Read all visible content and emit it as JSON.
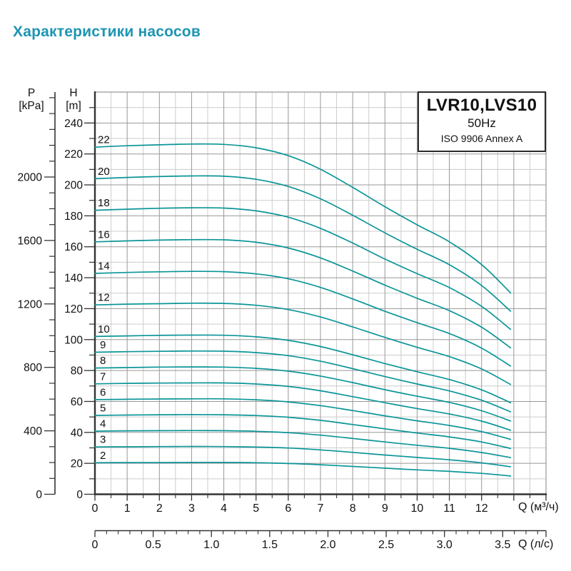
{
  "page": {
    "title": "Характеристики насосов"
  },
  "chart_data": {
    "type": "line",
    "title": "Характеристики насосов",
    "legend": {
      "model": "LVR10,LVS10",
      "frequency": "50Hz",
      "standard": "ISO 9906 Annex A"
    },
    "p_axis": {
      "name": "P",
      "unit": "[kPa]",
      "tick_labels": [
        0,
        400,
        800,
        1200,
        1600,
        2000
      ],
      "minor_step": 100,
      "minor_max": 2500
    },
    "h_axis": {
      "name": "H",
      "unit": "[m]",
      "tick_labels": [
        0,
        20,
        40,
        60,
        80,
        100,
        120,
        140,
        160,
        180,
        200,
        220,
        240
      ],
      "minor_step": 10,
      "minor_max": 250,
      "max": 260
    },
    "q_axis": {
      "unit_label": "Q (м³/ч)",
      "tick_labels": [
        0,
        1,
        2,
        3,
        4,
        5,
        6,
        7,
        8,
        9,
        10,
        11,
        12
      ],
      "major_max": 14,
      "minor_step": 0.5,
      "max": 14
    },
    "ls_axis": {
      "unit_label": "Q (л/с)",
      "tick_labels": [
        "0",
        "0.5",
        "1.0",
        "1.5",
        "2.0",
        "2.5",
        "3.0",
        "3.5"
      ],
      "tick_values": [
        0,
        0.5,
        1.0,
        1.5,
        2.0,
        2.5,
        3.0,
        3.5
      ],
      "minor_step": 0.1,
      "minor_max": 3.8
    },
    "x": [
      0,
      1,
      2,
      3,
      4,
      5,
      6,
      7,
      8,
      9,
      10,
      11,
      12,
      12.9
    ],
    "series": [
      {
        "name": "22",
        "stages": 22,
        "values": [
          224.4,
          225.3,
          225.9,
          226.4,
          226.2,
          224.0,
          218.9,
          210.1,
          198.4,
          185.9,
          174.2,
          163.2,
          148.5,
          130.2
        ]
      },
      {
        "name": "20",
        "stages": 20,
        "values": [
          204.0,
          204.8,
          205.4,
          205.8,
          205.6,
          203.6,
          199.0,
          191.0,
          180.4,
          169.0,
          158.4,
          148.4,
          135.0,
          118.4
        ]
      },
      {
        "name": "18",
        "stages": 18,
        "values": [
          183.6,
          184.3,
          184.9,
          185.2,
          185.0,
          183.2,
          179.1,
          171.9,
          162.4,
          152.1,
          142.6,
          133.6,
          121.5,
          106.6
        ]
      },
      {
        "name": "16",
        "stages": 16,
        "values": [
          163.2,
          163.8,
          164.3,
          164.6,
          164.5,
          162.9,
          159.2,
          152.8,
          144.3,
          135.2,
          126.7,
          118.7,
          108.0,
          94.7
        ]
      },
      {
        "name": "14",
        "stages": 14,
        "values": [
          142.8,
          143.4,
          143.8,
          144.1,
          143.9,
          142.5,
          139.3,
          133.7,
          126.3,
          118.3,
          110.9,
          103.9,
          94.5,
          82.9
        ]
      },
      {
        "name": "12",
        "stages": 12,
        "values": [
          122.4,
          122.9,
          123.2,
          123.5,
          123.4,
          122.2,
          119.4,
          114.6,
          108.2,
          101.4,
          95.0,
          89.0,
          81.0,
          71.0
        ]
      },
      {
        "name": "10",
        "stages": 10,
        "values": [
          102.0,
          102.4,
          102.7,
          102.9,
          102.8,
          101.8,
          99.5,
          95.5,
          90.2,
          84.5,
          79.2,
          74.2,
          67.5,
          59.2
        ]
      },
      {
        "name": "9",
        "stages": 9,
        "values": [
          91.8,
          92.2,
          92.4,
          92.6,
          92.5,
          91.6,
          89.6,
          86.0,
          81.2,
          76.1,
          71.3,
          66.8,
          60.8,
          53.3
        ]
      },
      {
        "name": "8",
        "stages": 8,
        "values": [
          81.6,
          81.9,
          82.2,
          82.3,
          82.2,
          81.4,
          79.6,
          76.4,
          72.2,
          67.6,
          63.4,
          59.4,
          54.0,
          47.4
        ]
      },
      {
        "name": "7",
        "stages": 7,
        "values": [
          71.4,
          71.7,
          71.9,
          72.0,
          72.0,
          71.3,
          69.7,
          66.9,
          63.1,
          59.2,
          55.4,
          51.9,
          47.3,
          41.4
        ]
      },
      {
        "name": "6",
        "stages": 6,
        "values": [
          61.2,
          61.4,
          61.6,
          61.7,
          61.7,
          61.1,
          59.7,
          57.3,
          54.1,
          50.7,
          47.5,
          44.5,
          40.5,
          35.5
        ]
      },
      {
        "name": "5",
        "stages": 5,
        "values": [
          51.0,
          51.2,
          51.4,
          51.5,
          51.4,
          50.9,
          49.8,
          47.8,
          45.1,
          42.3,
          39.6,
          37.1,
          33.8,
          29.6
        ]
      },
      {
        "name": "4",
        "stages": 4,
        "values": [
          40.8,
          41.0,
          41.1,
          41.2,
          41.1,
          40.7,
          39.8,
          38.2,
          36.1,
          33.8,
          31.7,
          29.7,
          27.0,
          23.7
        ]
      },
      {
        "name": "3",
        "stages": 3,
        "values": [
          30.6,
          30.7,
          30.8,
          30.9,
          30.8,
          30.5,
          29.9,
          28.7,
          27.1,
          25.4,
          23.8,
          22.3,
          20.3,
          17.8
        ]
      },
      {
        "name": "2",
        "stages": 2,
        "values": [
          20.4,
          20.5,
          20.5,
          20.6,
          20.6,
          20.4,
          19.9,
          19.1,
          18.0,
          16.9,
          15.8,
          14.8,
          13.5,
          11.8
        ]
      }
    ],
    "style": {
      "curve_color": "#0b9598",
      "grid_major": "#989898",
      "grid_minor": "#cccccc",
      "axis_color": "#333333",
      "title_color": "#1e95b2",
      "text_color": "#111111"
    }
  }
}
